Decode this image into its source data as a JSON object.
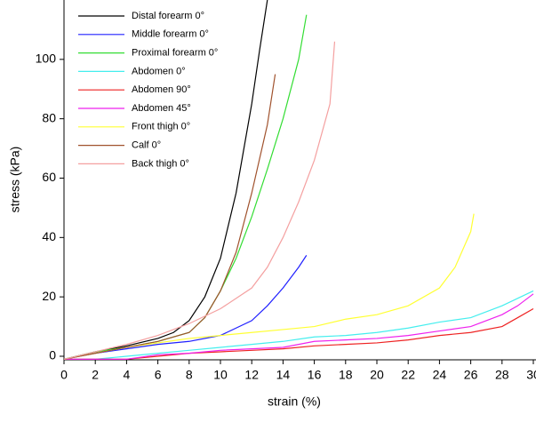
{
  "chart_data": {
    "type": "line",
    "xlabel": "strain (%)",
    "ylabel": "stress (kPa)",
    "xlim": [
      0,
      30
    ],
    "ylim": [
      -1.2,
      120
    ],
    "xticks": [
      0,
      2,
      4,
      6,
      8,
      10,
      12,
      14,
      16,
      18,
      20,
      22,
      24,
      26,
      28,
      30
    ],
    "yticks": [
      0,
      20,
      40,
      60,
      80,
      100
    ],
    "legend": "upper-left",
    "series": [
      {
        "name": "Distal forearm 0°",
        "color": "#000000",
        "x": [
          0,
          2,
          4,
          6,
          7,
          8,
          9,
          10,
          11,
          12,
          12.5,
          13
        ],
        "values": [
          -1,
          1.5,
          3.5,
          6,
          8,
          12,
          20,
          33,
          55,
          85,
          103,
          120
        ]
      },
      {
        "name": "Middle forearm 0°",
        "color": "#2020ff",
        "x": [
          0,
          2,
          4,
          6,
          8,
          10,
          12,
          13,
          14,
          15,
          15.5
        ],
        "values": [
          -1,
          1,
          2.5,
          4,
          5,
          7,
          12,
          17,
          23,
          30,
          34
        ]
      },
      {
        "name": "Proximal forearm 0°",
        "color": "#33dd33",
        "x": [
          0,
          2,
          4,
          6,
          8,
          9,
          10,
          11,
          12,
          13,
          14,
          15,
          15.5
        ],
        "values": [
          -1,
          1.5,
          3,
          5,
          8,
          13,
          22,
          33,
          47,
          63,
          80,
          100,
          115
        ]
      },
      {
        "name": "Abdomen 0°",
        "color": "#44eeee",
        "x": [
          0,
          2,
          4,
          6,
          8,
          10,
          12,
          14,
          16,
          18,
          20,
          22,
          24,
          26,
          28,
          30
        ],
        "values": [
          -1,
          -1,
          0,
          1,
          2,
          3,
          4,
          5,
          6.5,
          7,
          8,
          9.5,
          11.5,
          13,
          17,
          22
        ]
      },
      {
        "name": "Abdomen 90°",
        "color": "#ee2222",
        "x": [
          0,
          4,
          6,
          8,
          10,
          12,
          14,
          16,
          18,
          20,
          22,
          24,
          26,
          28,
          29,
          30
        ],
        "values": [
          -1,
          -1,
          0,
          1,
          1.5,
          2,
          2.5,
          3.5,
          4,
          4.5,
          5.5,
          7,
          8,
          10,
          13,
          16
        ]
      },
      {
        "name": "Abdomen 45°",
        "color": "#ee22ee",
        "x": [
          0,
          4,
          6,
          8,
          10,
          12,
          14,
          16,
          18,
          20,
          22,
          24,
          26,
          28,
          29,
          30
        ],
        "values": [
          -1,
          -1,
          0.5,
          1,
          2,
          2.5,
          3,
          5,
          5.5,
          6,
          7,
          8.5,
          10,
          14,
          17,
          21
        ]
      },
      {
        "name": "Front thigh 0°",
        "color": "#ffff33",
        "x": [
          0,
          2,
          4,
          6,
          8,
          10,
          12,
          14,
          16,
          18,
          20,
          22,
          24,
          25,
          26,
          26.2
        ],
        "values": [
          -1,
          1,
          3,
          4.5,
          6,
          7,
          8,
          9,
          10,
          12.5,
          14,
          17,
          23,
          30,
          42,
          48
        ]
      },
      {
        "name": "Calf 0°",
        "color": "#a0522d",
        "x": [
          0,
          2,
          4,
          6,
          8,
          9,
          10,
          11,
          12,
          13,
          13.5
        ],
        "values": [
          -1,
          1,
          3,
          5,
          8,
          13,
          22,
          35,
          55,
          78,
          95
        ]
      },
      {
        "name": "Back thigh 0°",
        "color": "#f4a0a0",
        "x": [
          0,
          2,
          4,
          6,
          8,
          10,
          12,
          13,
          14,
          15,
          16,
          17,
          17.3
        ],
        "values": [
          -1,
          1.5,
          4,
          7,
          11,
          16,
          23,
          30,
          40,
          52,
          66,
          85,
          106
        ]
      }
    ]
  }
}
